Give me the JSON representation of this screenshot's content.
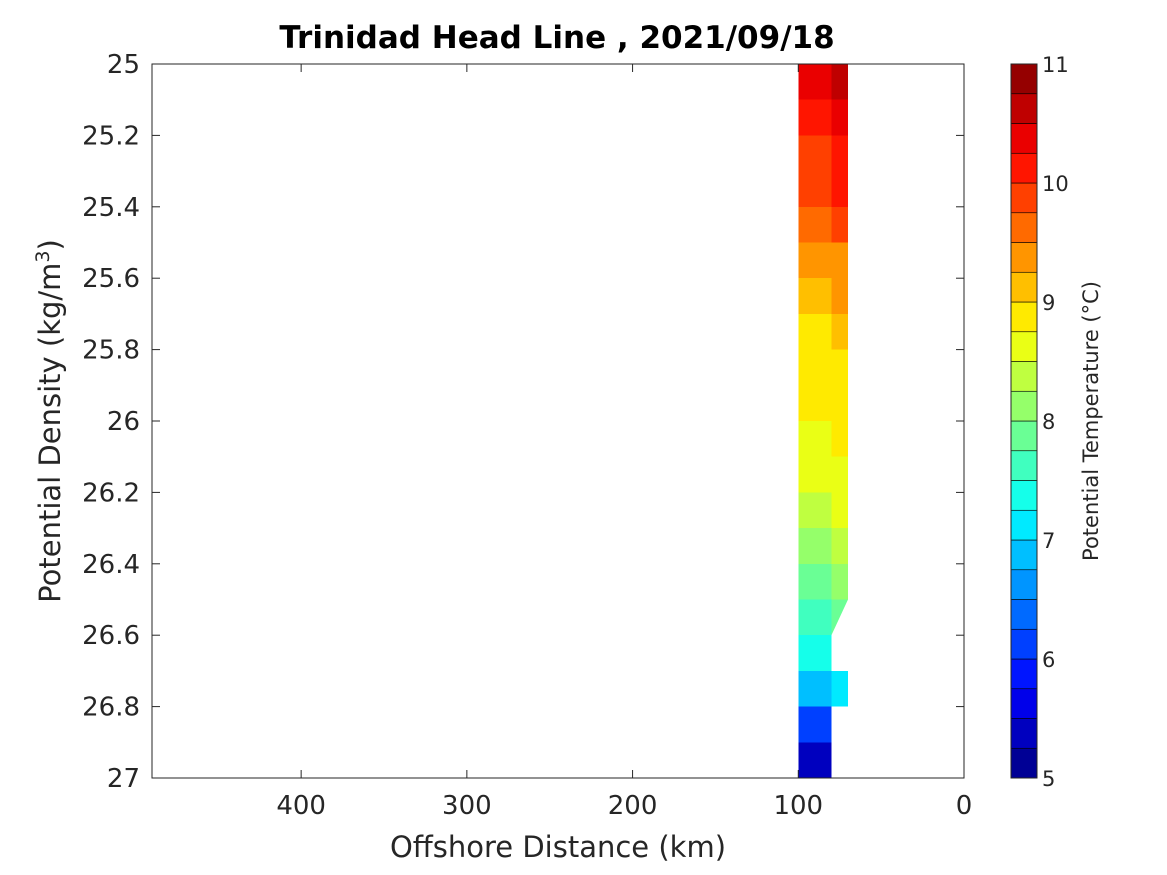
{
  "chart_data": {
    "type": "heatmap",
    "title": "Trinidad Head Line , 2021/09/18",
    "xlabel": "Offshore Distance (km)",
    "ylabel": "Potential Density (kg/m3)",
    "ylabel_parts": {
      "main": "Potential Density (kg/m",
      "sup": "3",
      "end": ")"
    },
    "xlim": [
      490,
      0
    ],
    "ylim": [
      25,
      27
    ],
    "xticks": [
      400,
      300,
      200,
      100,
      0
    ],
    "yticks": [
      25,
      25.2,
      25.4,
      25.6,
      25.8,
      26,
      26.2,
      26.4,
      26.6,
      26.8,
      27
    ],
    "ytick_labels": [
      "25",
      "25.2",
      "25.4",
      "25.6",
      "25.8",
      "26",
      "26.2",
      "26.4",
      "26.6",
      "26.8",
      "27"
    ],
    "xtick_labels": [
      "400",
      "300",
      "200",
      "100",
      "0"
    ],
    "colorbar": {
      "label": "Potential Temperature (°C)",
      "range": [
        5,
        11
      ],
      "step": 0.25,
      "ticks": [
        5,
        6,
        7,
        8,
        9,
        10,
        11
      ],
      "tick_labels": [
        "5",
        "6",
        "7",
        "8",
        "9",
        "10",
        "11"
      ],
      "colormap": "jet"
    },
    "section": {
      "x_west": 100,
      "x_mid": 80,
      "x_east": 70,
      "bands": [
        {
          "sigma": 25.0,
          "temp_west": 10.1,
          "temp_mid": 10.6,
          "temp_east": 10.8
        },
        {
          "sigma": 25.1,
          "temp_west": 9.9,
          "temp_mid": 10.2,
          "temp_east": 10.5
        },
        {
          "sigma": 25.2,
          "temp_west": 9.8,
          "temp_mid": 10.0,
          "temp_east": 10.4
        },
        {
          "sigma": 25.3,
          "temp_west": 9.6,
          "temp_mid": 9.9,
          "temp_east": 10.2
        },
        {
          "sigma": 25.4,
          "temp_west": 9.5,
          "temp_mid": 9.65,
          "temp_east": 9.9
        },
        {
          "sigma": 25.5,
          "temp_west": 9.4,
          "temp_mid": 9.25,
          "temp_east": 9.6
        },
        {
          "sigma": 25.6,
          "temp_west": 9.3,
          "temp_mid": 9.1,
          "temp_east": 9.4
        },
        {
          "sigma": 25.7,
          "temp_west": 9.0,
          "temp_mid": 8.9,
          "temp_east": 9.2
        },
        {
          "sigma": 25.8,
          "temp_west": 8.9,
          "temp_mid": 8.75,
          "temp_east": 9.05
        },
        {
          "sigma": 25.9,
          "temp_west": 8.85,
          "temp_mid": 8.7,
          "temp_east": 8.95
        },
        {
          "sigma": 26.0,
          "temp_west": 8.8,
          "temp_mid": 8.65,
          "temp_east": 8.85
        },
        {
          "sigma": 26.1,
          "temp_west": 8.6,
          "temp_mid": 8.5,
          "temp_east": 8.75
        },
        {
          "sigma": 26.2,
          "temp_west": 8.4,
          "temp_mid": 8.45,
          "temp_east": 8.6
        },
        {
          "sigma": 26.3,
          "temp_west": 8.1,
          "temp_mid": 8.2,
          "temp_east": 8.4
        },
        {
          "sigma": 26.4,
          "temp_west": 7.9,
          "temp_mid": 8.0,
          "temp_east": 8.1
        },
        {
          "sigma": 26.5,
          "temp_west": 7.7,
          "temp_mid": 7.75,
          "temp_east": 7.85
        },
        {
          "sigma": 26.6,
          "temp_west": 7.3,
          "temp_mid": 7.4,
          "temp_east": null
        },
        {
          "sigma": 26.7,
          "temp_west": 6.7,
          "temp_mid": 6.9,
          "temp_east": 7.2
        },
        {
          "sigma": 26.8,
          "temp_west": 6.1,
          "temp_mid": 6.3,
          "temp_east": null
        },
        {
          "sigma": 26.9,
          "temp_west": 5.4,
          "temp_mid": 5.5,
          "temp_east": null
        }
      ]
    }
  }
}
